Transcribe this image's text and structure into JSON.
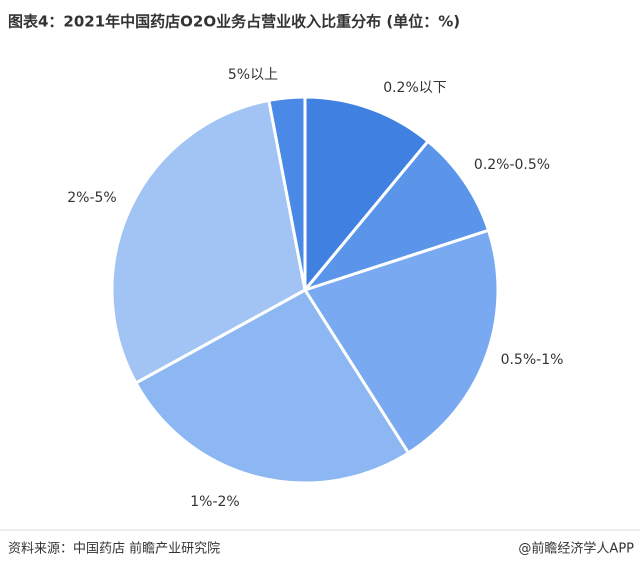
{
  "chart_data": {
    "type": "pie",
    "title": "图表4：2021年中国药店O2O业务占营业收入比重分布 (单位：%)",
    "categories": [
      "0.2%以下",
      "0.2%-0.5%",
      "0.5%-1%",
      "1%-2%",
      "2%-5%",
      "5%以上"
    ],
    "values": [
      11,
      9,
      21,
      26,
      30,
      3
    ],
    "colors": [
      "#3f80e0",
      "#5b95e9",
      "#79a9f0",
      "#8db7f3",
      "#a2c4f5",
      "#4a89e5"
    ],
    "source": "资料来源：中国药店 前瞻产业研究院",
    "credit": "@前瞻经济学人APP"
  }
}
